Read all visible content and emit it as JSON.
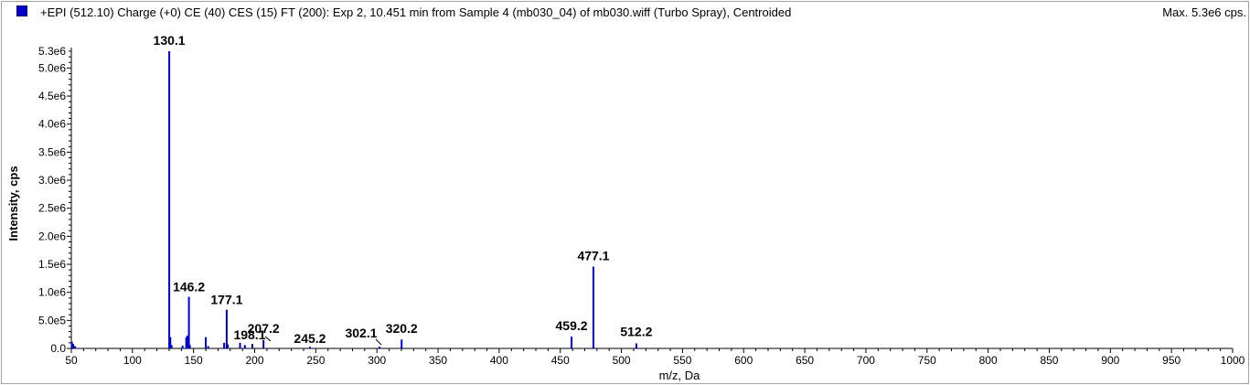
{
  "header": {
    "title": "+EPI (512.10) Charge (+0) CE (40) CES (15) FT (200): Exp 2, 10.451 min from Sample 4 (mb030_04) of mb030.wiff (Turbo Spray), Centroided",
    "max_label": "Max. 5.3e6 cps.",
    "series_color": "#0000cc"
  },
  "chart_data": {
    "type": "bar",
    "xlabel": "m/z, Da",
    "ylabel": "Intensity, cps",
    "xlim": [
      50,
      1000
    ],
    "ylim": [
      0,
      5300000
    ],
    "x_ticks": [
      50,
      100,
      150,
      200,
      250,
      300,
      350,
      400,
      450,
      500,
      550,
      600,
      650,
      700,
      750,
      800,
      850,
      900,
      950,
      1000
    ],
    "y_ticks": [
      {
        "value": 0,
        "label": "0.0"
      },
      {
        "value": 500000,
        "label": "5.0e5"
      },
      {
        "value": 1000000,
        "label": "1.0e6"
      },
      {
        "value": 1500000,
        "label": "1.5e6"
      },
      {
        "value": 2000000,
        "label": "2.0e6"
      },
      {
        "value": 2500000,
        "label": "2.5e6"
      },
      {
        "value": 3000000,
        "label": "3.0e6"
      },
      {
        "value": 3500000,
        "label": "3.5e6"
      },
      {
        "value": 4000000,
        "label": "4.0e6"
      },
      {
        "value": 4500000,
        "label": "4.5e6"
      },
      {
        "value": 5000000,
        "label": "5.0e6"
      },
      {
        "value": 5300000,
        "label": "5.3e6"
      }
    ],
    "peaks": [
      {
        "mz": 50.5,
        "intensity": 120000
      },
      {
        "mz": 51.5,
        "intensity": 80000
      },
      {
        "mz": 53,
        "intensity": 40000
      },
      {
        "mz": 130.1,
        "intensity": 5300000,
        "label": "130.1"
      },
      {
        "mz": 131,
        "intensity": 200000
      },
      {
        "mz": 132,
        "intensity": 60000
      },
      {
        "mz": 141,
        "intensity": 50000
      },
      {
        "mz": 144,
        "intensity": 200000
      },
      {
        "mz": 145,
        "intensity": 230000
      },
      {
        "mz": 146.2,
        "intensity": 920000,
        "label": "146.2"
      },
      {
        "mz": 147,
        "intensity": 60000
      },
      {
        "mz": 160,
        "intensity": 200000
      },
      {
        "mz": 162,
        "intensity": 40000
      },
      {
        "mz": 175,
        "intensity": 100000
      },
      {
        "mz": 177.1,
        "intensity": 690000,
        "label": "177.1"
      },
      {
        "mz": 178,
        "intensity": 70000
      },
      {
        "mz": 188,
        "intensity": 100000
      },
      {
        "mz": 192,
        "intensity": 60000
      },
      {
        "mz": 198.1,
        "intensity": 80000,
        "label": "198.1"
      },
      {
        "mz": 207.2,
        "intensity": 150000,
        "label": "207.2"
      },
      {
        "mz": 245.2,
        "intensity": 30000,
        "label": "245.2"
      },
      {
        "mz": 302.1,
        "intensity": 30000,
        "label": "302.1"
      },
      {
        "mz": 320.2,
        "intensity": 160000,
        "label": "320.2"
      },
      {
        "mz": 459.2,
        "intensity": 210000,
        "label": "459.2"
      },
      {
        "mz": 477.1,
        "intensity": 1460000,
        "label": "477.1"
      },
      {
        "mz": 512.2,
        "intensity": 90000,
        "label": "512.2"
      }
    ]
  }
}
